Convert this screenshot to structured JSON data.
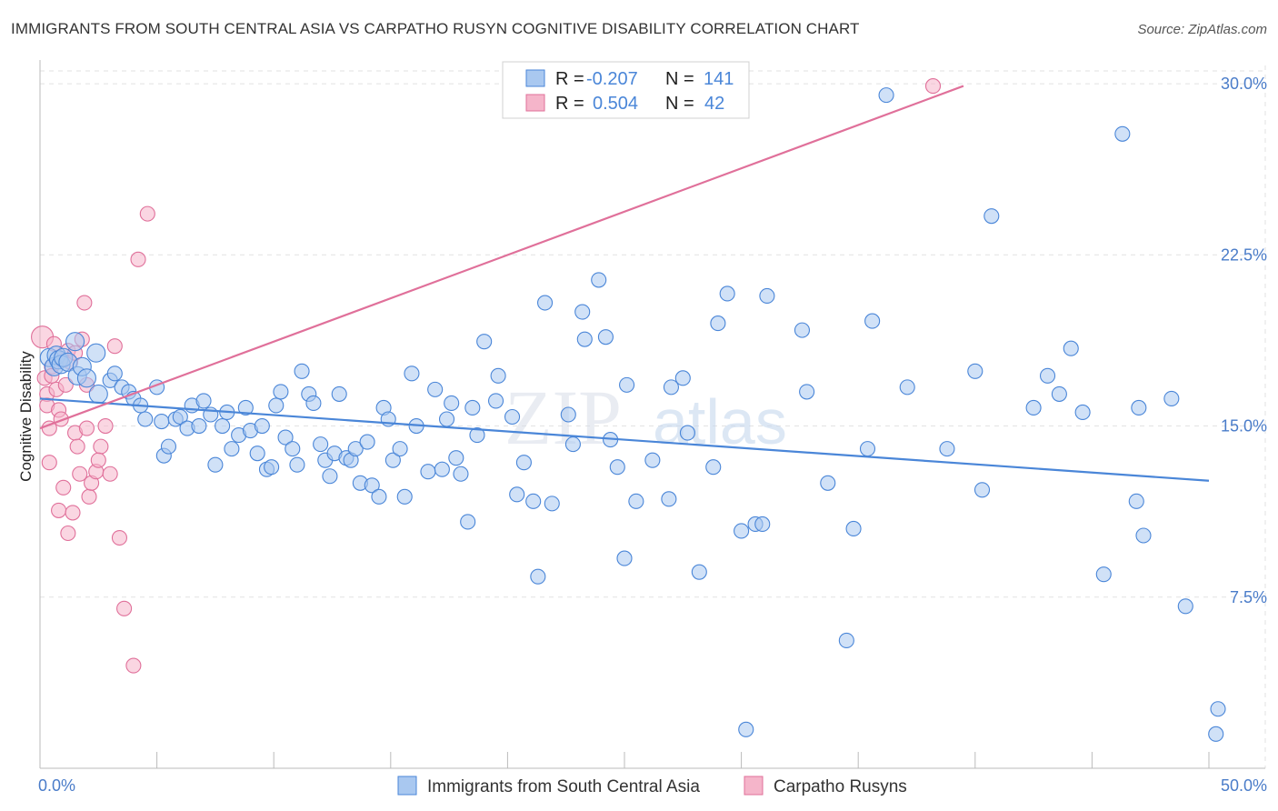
{
  "header": {
    "title": "IMMIGRANTS FROM SOUTH CENTRAL ASIA VS CARPATHO RUSYN COGNITIVE DISABILITY CORRELATION CHART",
    "source": "Source: ZipAtlas.com"
  },
  "watermark": {
    "part1": "ZIP",
    "part2": "atlas"
  },
  "colors": {
    "blue": "#4a86d8",
    "blue_fill": "#a9c8f0",
    "pink": "#e0709a",
    "pink_fill": "#f5b5ca",
    "axis_text": "#4a7cc9"
  },
  "chart_data": {
    "type": "scatter",
    "title": "IMMIGRANTS FROM SOUTH CENTRAL ASIA VS CARPATHO RUSYN COGNITIVE DISABILITY CORRELATION CHART",
    "xlabel": "",
    "ylabel": "Cognitive Disability",
    "xlim": [
      0,
      50
    ],
    "ylim": [
      0,
      30.8
    ],
    "x_tick_labels": [
      {
        "value": 0,
        "label": "0.0%"
      },
      {
        "value": 50,
        "label": "50.0%"
      }
    ],
    "y_tick_labels": [
      {
        "value": 7.5,
        "label": "7.5%"
      },
      {
        "value": 15,
        "label": "15.0%"
      },
      {
        "value": 22.5,
        "label": "22.5%"
      },
      {
        "value": 30,
        "label": "30.0%"
      }
    ],
    "grid": true,
    "legend_position": "top-center",
    "stats": [
      {
        "r_label": "R =",
        "r_value": "-0.207",
        "n_label": "N =",
        "n_value": "141"
      },
      {
        "r_label": "R =",
        "r_value": "0.504",
        "n_label": "N =",
        "n_value": "42"
      }
    ],
    "series": [
      {
        "name": "Immigrants from South Central Asia",
        "color": "#4a86d8",
        "trend": {
          "x": [
            0,
            50
          ],
          "y": [
            16.2,
            12.6
          ]
        },
        "points": [
          [
            0.4,
            18.0
          ],
          [
            0.6,
            17.6
          ],
          [
            0.7,
            18.1
          ],
          [
            0.8,
            17.9
          ],
          [
            0.9,
            17.7
          ],
          [
            1.0,
            18.0
          ],
          [
            1.2,
            17.8
          ],
          [
            1.5,
            18.7
          ],
          [
            1.6,
            17.2
          ],
          [
            1.8,
            17.6
          ],
          [
            2.0,
            17.1
          ],
          [
            2.4,
            18.2
          ],
          [
            2.5,
            16.4
          ],
          [
            3.0,
            17.0
          ],
          [
            3.2,
            17.3
          ],
          [
            3.5,
            16.7
          ],
          [
            3.8,
            16.5
          ],
          [
            4.0,
            16.2
          ],
          [
            4.3,
            15.9
          ],
          [
            4.5,
            15.3
          ],
          [
            5.0,
            16.7
          ],
          [
            5.2,
            15.2
          ],
          [
            5.3,
            13.7
          ],
          [
            5.5,
            14.1
          ],
          [
            5.8,
            15.3
          ],
          [
            6.0,
            15.4
          ],
          [
            6.3,
            14.9
          ],
          [
            6.5,
            15.9
          ],
          [
            6.8,
            15.0
          ],
          [
            7.0,
            16.1
          ],
          [
            7.3,
            15.5
          ],
          [
            7.5,
            13.3
          ],
          [
            7.8,
            15.0
          ],
          [
            8.0,
            15.6
          ],
          [
            8.2,
            14.0
          ],
          [
            8.5,
            14.6
          ],
          [
            8.8,
            15.8
          ],
          [
            9.0,
            14.8
          ],
          [
            9.3,
            13.8
          ],
          [
            9.5,
            15.0
          ],
          [
            9.7,
            13.1
          ],
          [
            9.9,
            13.2
          ],
          [
            10.1,
            15.9
          ],
          [
            10.3,
            16.5
          ],
          [
            10.5,
            14.5
          ],
          [
            10.8,
            14.0
          ],
          [
            11.0,
            13.3
          ],
          [
            11.2,
            17.4
          ],
          [
            11.5,
            16.4
          ],
          [
            11.7,
            16.0
          ],
          [
            12.0,
            14.2
          ],
          [
            12.2,
            13.5
          ],
          [
            12.4,
            12.8
          ],
          [
            12.6,
            13.8
          ],
          [
            12.8,
            16.4
          ],
          [
            13.1,
            13.6
          ],
          [
            13.3,
            13.5
          ],
          [
            13.5,
            14.0
          ],
          [
            13.7,
            12.5
          ],
          [
            14.0,
            14.3
          ],
          [
            14.2,
            12.4
          ],
          [
            14.5,
            11.9
          ],
          [
            14.7,
            15.8
          ],
          [
            14.9,
            15.3
          ],
          [
            15.1,
            13.5
          ],
          [
            15.4,
            14.0
          ],
          [
            15.6,
            11.9
          ],
          [
            15.9,
            17.3
          ],
          [
            16.1,
            15.0
          ],
          [
            16.6,
            13.0
          ],
          [
            16.9,
            16.6
          ],
          [
            17.2,
            13.1
          ],
          [
            17.4,
            15.3
          ],
          [
            17.6,
            16.0
          ],
          [
            17.8,
            13.6
          ],
          [
            18.0,
            12.9
          ],
          [
            18.3,
            10.8
          ],
          [
            18.5,
            15.8
          ],
          [
            18.7,
            14.6
          ],
          [
            19.0,
            18.7
          ],
          [
            19.5,
            16.1
          ],
          [
            19.6,
            17.2
          ],
          [
            20.2,
            15.4
          ],
          [
            20.4,
            12.0
          ],
          [
            20.7,
            13.4
          ],
          [
            21.1,
            11.7
          ],
          [
            21.3,
            8.4
          ],
          [
            21.6,
            20.4
          ],
          [
            21.9,
            11.6
          ],
          [
            22.6,
            15.5
          ],
          [
            22.8,
            14.2
          ],
          [
            23.2,
            20.0
          ],
          [
            23.3,
            18.8
          ],
          [
            23.9,
            21.4
          ],
          [
            24.2,
            18.9
          ],
          [
            24.4,
            14.4
          ],
          [
            24.7,
            13.2
          ],
          [
            25.0,
            9.2
          ],
          [
            25.1,
            16.8
          ],
          [
            25.5,
            11.7
          ],
          [
            26.2,
            13.5
          ],
          [
            26.9,
            11.8
          ],
          [
            27.0,
            16.7
          ],
          [
            27.5,
            17.1
          ],
          [
            27.7,
            14.7
          ],
          [
            28.2,
            8.6
          ],
          [
            28.8,
            13.2
          ],
          [
            29.0,
            19.5
          ],
          [
            29.4,
            20.8
          ],
          [
            30.0,
            10.4
          ],
          [
            30.2,
            1.7
          ],
          [
            30.6,
            10.7
          ],
          [
            30.9,
            10.7
          ],
          [
            31.1,
            20.7
          ],
          [
            32.6,
            19.2
          ],
          [
            32.8,
            16.5
          ],
          [
            33.7,
            12.5
          ],
          [
            34.5,
            5.6
          ],
          [
            34.8,
            10.5
          ],
          [
            35.4,
            14.0
          ],
          [
            35.6,
            19.6
          ],
          [
            36.2,
            29.5
          ],
          [
            37.1,
            16.7
          ],
          [
            38.8,
            14.0
          ],
          [
            40.0,
            17.4
          ],
          [
            40.3,
            12.2
          ],
          [
            40.7,
            24.2
          ],
          [
            42.5,
            15.8
          ],
          [
            43.1,
            17.2
          ],
          [
            43.6,
            16.4
          ],
          [
            44.1,
            18.4
          ],
          [
            44.6,
            15.6
          ],
          [
            45.5,
            8.5
          ],
          [
            46.3,
            27.8
          ],
          [
            46.9,
            11.7
          ],
          [
            47.0,
            15.8
          ],
          [
            47.2,
            10.2
          ],
          [
            48.4,
            16.2
          ],
          [
            49.0,
            7.1
          ],
          [
            50.3,
            1.5
          ],
          [
            52.2,
            2.6
          ]
        ]
      },
      {
        "name": "Carpatho Rusyns",
        "color": "#e0709a",
        "trend": {
          "x": [
            0,
            39.5
          ],
          "y": [
            14.9,
            29.9
          ]
        },
        "points": [
          [
            0.1,
            18.9
          ],
          [
            0.2,
            17.1
          ],
          [
            0.3,
            16.4
          ],
          [
            0.3,
            15.9
          ],
          [
            0.4,
            14.9
          ],
          [
            0.4,
            13.4
          ],
          [
            0.5,
            17.6
          ],
          [
            0.6,
            18.6
          ],
          [
            0.7,
            16.6
          ],
          [
            0.8,
            15.7
          ],
          [
            0.8,
            11.3
          ],
          [
            0.9,
            15.3
          ],
          [
            1.0,
            12.3
          ],
          [
            1.1,
            16.8
          ],
          [
            1.2,
            18.3
          ],
          [
            1.2,
            10.3
          ],
          [
            1.3,
            17.8
          ],
          [
            1.4,
            11.2
          ],
          [
            1.5,
            14.7
          ],
          [
            1.6,
            14.1
          ],
          [
            1.7,
            12.9
          ],
          [
            1.8,
            18.8
          ],
          [
            1.9,
            20.4
          ],
          [
            2.0,
            14.9
          ],
          [
            2.1,
            11.9
          ],
          [
            2.2,
            12.5
          ],
          [
            2.4,
            13.0
          ],
          [
            2.6,
            14.1
          ],
          [
            2.8,
            15.0
          ],
          [
            3.0,
            12.9
          ],
          [
            3.2,
            18.5
          ],
          [
            3.4,
            10.1
          ],
          [
            3.6,
            7.0
          ],
          [
            4.0,
            4.5
          ],
          [
            4.2,
            22.3
          ],
          [
            4.6,
            24.3
          ],
          [
            0.5,
            17.2
          ],
          [
            0.9,
            17.9
          ],
          [
            1.5,
            18.2
          ],
          [
            2.0,
            16.8
          ],
          [
            2.5,
            13.5
          ],
          [
            38.2,
            29.9
          ]
        ]
      }
    ]
  }
}
